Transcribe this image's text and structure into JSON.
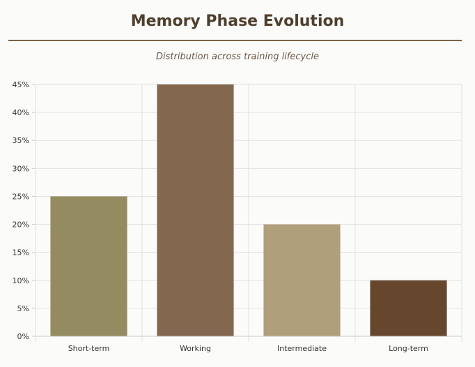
{
  "chart_data": {
    "type": "bar",
    "title": "Memory Phase Evolution",
    "subtitle": "Distribution across training lifecycle",
    "categories": [
      "Short-term",
      "Working",
      "Intermediate",
      "Long-term"
    ],
    "values": [
      25,
      45,
      20,
      10
    ],
    "colors": [
      "#958b61",
      "#83684f",
      "#b09f7b",
      "#66472e"
    ],
    "ylim": [
      0,
      45
    ],
    "yticks": [
      0,
      5,
      10,
      15,
      20,
      25,
      30,
      35,
      40,
      45
    ],
    "ytick_labels": [
      "0%",
      "5%",
      "10%",
      "15%",
      "20%",
      "25%",
      "30%",
      "35%",
      "40%",
      "45%"
    ],
    "grid": true,
    "legend": "none",
    "xlabel": "",
    "ylabel": ""
  }
}
